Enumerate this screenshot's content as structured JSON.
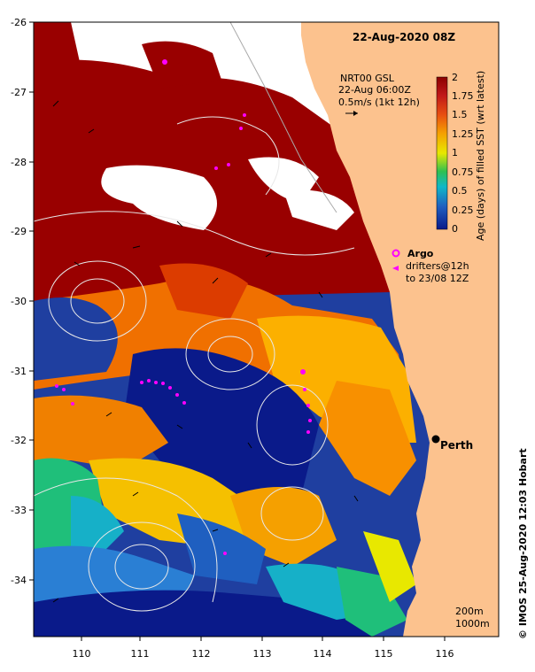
{
  "map": {
    "date_title": "22-Aug-2020 08Z",
    "product": {
      "name": "NRT00 GSL",
      "time": "22-Aug 06:00Z",
      "scale": "0.5m/s (1kt 12h)"
    },
    "colorbar": {
      "title": "Age (days) of filled SST (wrt latest)",
      "ticks": [
        "2",
        "1.75",
        "1.5",
        "1.25",
        "1",
        "0.75",
        "0.5",
        "0.25",
        "0"
      ],
      "colors": [
        "#8b0000",
        "#b22222",
        "#dc3c00",
        "#f06000",
        "#f89000",
        "#fcc000",
        "#e8e800",
        "#7ed321",
        "#1fbf7a",
        "#16b0c8",
        "#2a7fd4",
        "#1f3fa0",
        "#0a1a8a"
      ]
    },
    "legend": {
      "argo_label": "Argo",
      "drifters_label": "drifters@12h",
      "drifters_time": "to 23/08 12Z",
      "argo_color": "#ff00ff"
    },
    "city": {
      "name": "Perth"
    },
    "contours_label": [
      "200m",
      "1000m"
    ],
    "x_ticks": [
      "110",
      "111",
      "112",
      "113",
      "114",
      "115",
      "116"
    ],
    "y_ticks": [
      "-26",
      "-27",
      "-28",
      "-29",
      "-30",
      "-31",
      "-32",
      "-33",
      "-34"
    ],
    "credit": "© IMOS 25-Aug-2020 12:03 Hobart",
    "colors": {
      "land": "#fcc28e",
      "cloud": "#ffffff",
      "contour": "#e0e0e0"
    }
  }
}
